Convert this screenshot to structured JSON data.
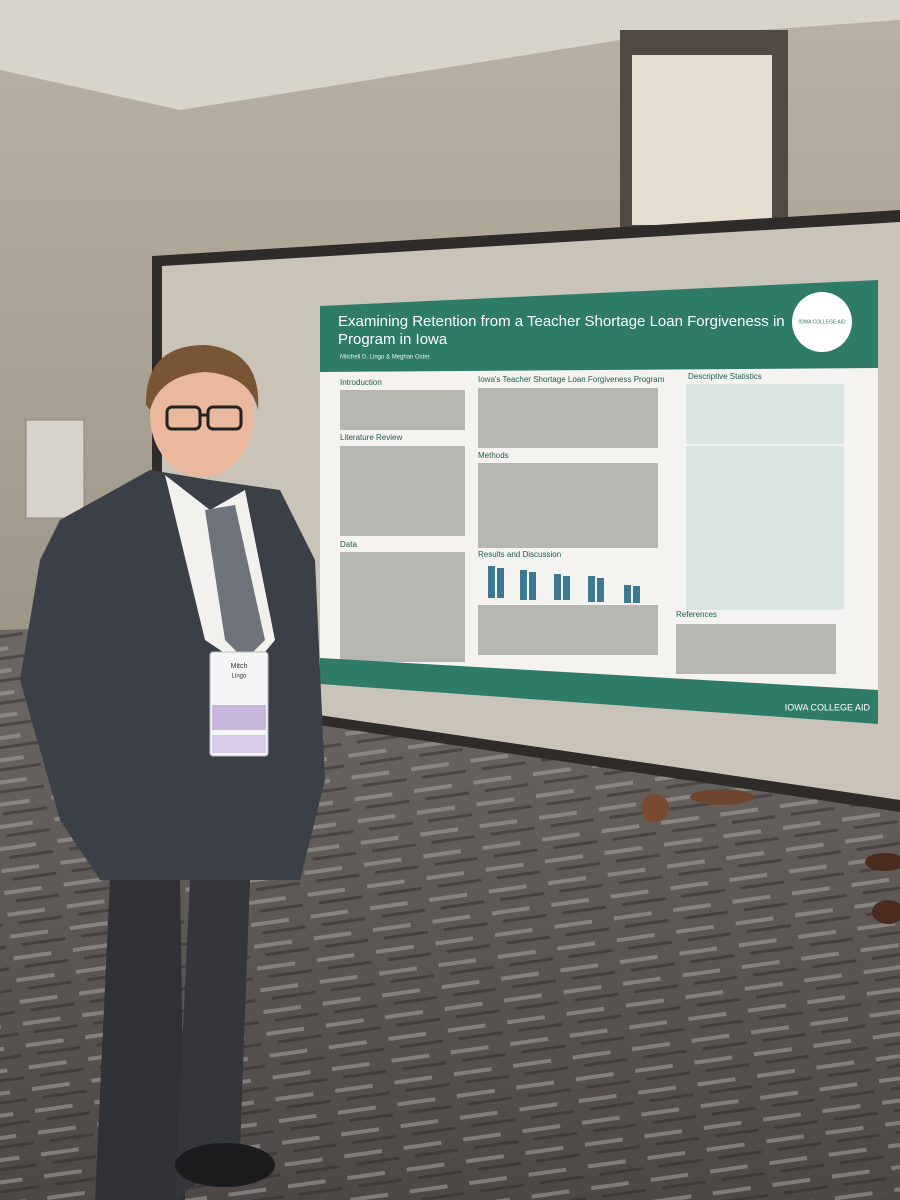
{
  "poster": {
    "title_lines": [
      "Examining Retention from a Teacher Shortage Loan Forgiveness in",
      "Program in Iowa"
    ],
    "authors": "Mitchell D. Lingo & Meghan Oster",
    "logo": "IOWA COLLEGE AID",
    "sections": {
      "introduction": "Introduction",
      "literature_review": "Literature Review",
      "data": "Data",
      "program": "Iowa's Teacher Shortage Loan Forgiveness Program",
      "methods": "Methods",
      "results": "Results and Discussion",
      "descriptive_statistics": "Descriptive Statistics",
      "references": "References"
    },
    "footer": "IOWA COLLEGE AID"
  },
  "badge": {
    "first_name": "Mitch",
    "last_name": "Lingo"
  }
}
